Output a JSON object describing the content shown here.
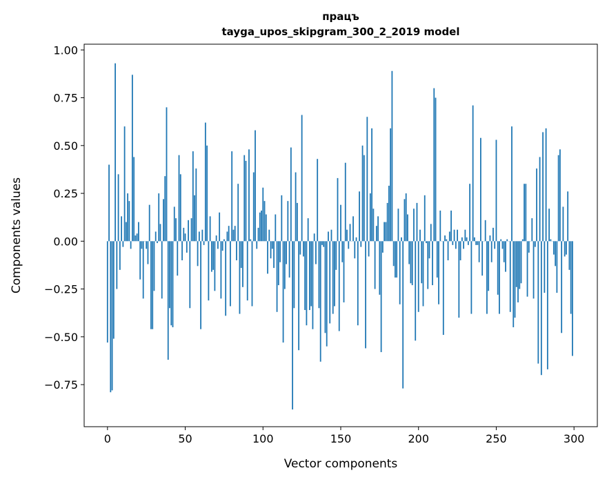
{
  "chart_data": {
    "type": "bar",
    "title": "працъ",
    "subtitle": "tayga_upos_skipgram_300_2_2019 model",
    "xlabel": "Vector components",
    "ylabel": "Components values",
    "xlim": [
      -15,
      315
    ],
    "ylim": [
      -0.97,
      1.03
    ],
    "xticks": [
      0,
      50,
      100,
      150,
      200,
      250,
      300
    ],
    "xtick_labels": [
      "0",
      "50",
      "100",
      "150",
      "200",
      "250",
      "300"
    ],
    "yticks": [
      -0.75,
      -0.5,
      -0.25,
      0,
      0.25,
      0.5,
      0.75,
      1.0
    ],
    "ytick_labels": [
      "−0.75",
      "−0.50",
      "−0.25",
      "0.00",
      "0.25",
      "0.50",
      "0.75",
      "1.00"
    ],
    "grid": false,
    "bar_color": "#1f77b4",
    "values": [
      -0.53,
      0.4,
      -0.79,
      -0.78,
      -0.51,
      0.93,
      -0.25,
      0.35,
      -0.15,
      0.13,
      -0.03,
      0.6,
      0.1,
      0.25,
      0.21,
      -0.04,
      0.87,
      0.44,
      0.03,
      0.04,
      0.1,
      -0.2,
      -0.04,
      -0.3,
      0.0,
      -0.04,
      -0.12,
      0.19,
      -0.46,
      -0.46,
      -0.26,
      0.05,
      -0.01,
      0.25,
      0.09,
      -0.3,
      0.22,
      0.34,
      0.7,
      -0.62,
      -0.35,
      -0.44,
      -0.45,
      0.18,
      0.12,
      -0.18,
      0.45,
      0.35,
      -0.1,
      0.07,
      0.04,
      -0.06,
      0.11,
      -0.35,
      0.12,
      0.47,
      0.24,
      0.38,
      -0.13,
      0.05,
      -0.46,
      0.06,
      -0.02,
      0.62,
      0.5,
      -0.31,
      0.13,
      -0.16,
      -0.15,
      -0.26,
      0.03,
      -0.04,
      0.15,
      -0.3,
      -0.05,
      0.01,
      -0.39,
      0.05,
      0.08,
      -0.34,
      0.47,
      0.06,
      0.08,
      -0.1,
      0.3,
      -0.38,
      -0.14,
      -0.24,
      0.45,
      0.42,
      -0.31,
      0.48,
      0.01,
      -0.34,
      0.36,
      0.58,
      -0.04,
      0.07,
      0.15,
      0.16,
      0.28,
      0.21,
      0.14,
      -0.17,
      0.06,
      -0.09,
      -0.04,
      -0.14,
      0.14,
      -0.37,
      -0.23,
      -0.11,
      0.24,
      -0.53,
      -0.25,
      -0.12,
      0.21,
      -0.19,
      0.49,
      -0.88,
      -0.35,
      0.36,
      0.2,
      -0.57,
      -0.07,
      0.66,
      -0.08,
      -0.36,
      -0.44,
      0.12,
      -0.36,
      -0.34,
      -0.46,
      0.04,
      -0.12,
      0.43,
      -0.35,
      -0.63,
      -0.02,
      -0.03,
      -0.48,
      -0.55,
      0.05,
      -0.43,
      0.06,
      -0.38,
      -0.34,
      -0.15,
      0.33,
      -0.47,
      0.19,
      -0.11,
      -0.32,
      0.41,
      0.06,
      -0.04,
      0.09,
      0.0,
      0.13,
      -0.09,
      0.02,
      -0.44,
      0.26,
      -0.03,
      0.5,
      0.45,
      -0.56,
      0.65,
      -0.08,
      0.25,
      0.59,
      0.17,
      -0.25,
      0.08,
      0.13,
      -0.28,
      -0.58,
      -0.06,
      0.1,
      0.1,
      0.2,
      0.29,
      0.59,
      0.89,
      -0.13,
      -0.19,
      -0.19,
      0.17,
      -0.33,
      0.02,
      -0.77,
      0.22,
      0.25,
      0.14,
      -0.12,
      -0.22,
      -0.23,
      0.17,
      -0.52,
      0.2,
      -0.37,
      0.06,
      -0.22,
      -0.34,
      0.24,
      -0.01,
      -0.25,
      -0.09,
      0.09,
      -0.23,
      0.8,
      0.75,
      -0.19,
      -0.33,
      0.16,
      0.0,
      -0.49,
      0.03,
      0.01,
      -0.1,
      0.05,
      0.16,
      -0.02,
      0.06,
      -0.04,
      0.06,
      -0.4,
      -0.1,
      0.02,
      -0.04,
      0.06,
      0.02,
      -0.02,
      0.3,
      -0.38,
      0.71,
      0.02,
      -0.02,
      -0.02,
      -0.11,
      0.54,
      -0.18,
      0.0,
      0.11,
      -0.38,
      -0.26,
      0.03,
      -0.11,
      0.07,
      -0.04,
      0.53,
      -0.28,
      -0.38,
      0.01,
      -0.04,
      -0.11,
      -0.16,
      0.01,
      0.0,
      -0.37,
      0.6,
      -0.45,
      -0.4,
      -0.24,
      -0.32,
      -0.25,
      -0.22,
      0.01,
      0.3,
      0.3,
      -0.29,
      -0.06,
      0.0,
      0.12,
      -0.3,
      -0.03,
      0.38,
      -0.64,
      0.44,
      -0.7,
      0.57,
      -0.27,
      0.59,
      -0.67,
      0.17,
      0.01,
      0.0,
      -0.07,
      -0.13,
      -0.27,
      0.45,
      0.48,
      -0.48,
      0.18,
      -0.08,
      -0.07,
      0.26,
      -0.15,
      -0.38,
      -0.6
    ]
  }
}
